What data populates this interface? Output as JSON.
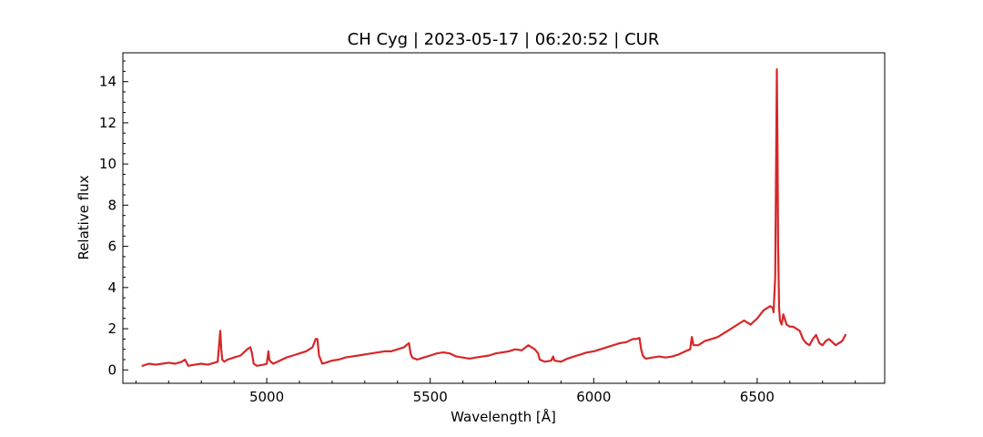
{
  "chart_data": {
    "type": "line",
    "title": "CH Cyg | 2023-05-17 | 06:20:52 | CUR",
    "xlabel": "Wavelength [Å]",
    "ylabel": "Relative flux",
    "xlim": [
      4560,
      6890
    ],
    "ylim": [
      -0.65,
      15.4
    ],
    "xticks": [
      5000,
      5500,
      6000,
      6500
    ],
    "yticks": [
      0,
      2,
      4,
      6,
      8,
      10,
      12,
      14
    ],
    "grid": false,
    "series": [
      {
        "color": "#d62728",
        "x": [
          4620,
          4640,
          4660,
          4680,
          4700,
          4720,
          4740,
          4750,
          4760,
          4780,
          4800,
          4820,
          4840,
          4850,
          4858,
          4861,
          4864,
          4870,
          4880,
          4900,
          4920,
          4940,
          4950,
          4955,
          4960,
          4970,
          4990,
          5000,
          5005,
          5008,
          5012,
          5020,
          5040,
          5060,
          5080,
          5100,
          5120,
          5140,
          5150,
          5155,
          5160,
          5170,
          5180,
          5200,
          5220,
          5240,
          5260,
          5280,
          5300,
          5320,
          5340,
          5360,
          5380,
          5400,
          5420,
          5435,
          5440,
          5445,
          5460,
          5480,
          5500,
          5520,
          5540,
          5560,
          5580,
          5600,
          5620,
          5640,
          5660,
          5680,
          5700,
          5720,
          5740,
          5760,
          5780,
          5800,
          5810,
          5820,
          5830,
          5835,
          5850,
          5870,
          5876,
          5880,
          5900,
          5920,
          5940,
          5960,
          5980,
          6000,
          6020,
          6040,
          6060,
          6080,
          6100,
          6120,
          6130,
          6140,
          6145,
          6150,
          6155,
          6160,
          6180,
          6200,
          6220,
          6240,
          6260,
          6280,
          6295,
          6300,
          6305,
          6320,
          6340,
          6360,
          6380,
          6400,
          6420,
          6440,
          6460,
          6470,
          6480,
          6500,
          6520,
          6530,
          6540,
          6548,
          6550,
          6555,
          6558,
          6560,
          6562,
          6564,
          6567,
          6570,
          6575,
          6580,
          6590,
          6600,
          6610,
          6620,
          6630,
          6640,
          6650,
          6660,
          6670,
          6680,
          6690,
          6700,
          6710,
          6720,
          6740,
          6760,
          6770
        ],
        "y": [
          0.2,
          0.3,
          0.25,
          0.3,
          0.35,
          0.3,
          0.4,
          0.5,
          0.2,
          0.25,
          0.3,
          0.25,
          0.35,
          0.4,
          1.9,
          1.0,
          0.5,
          0.4,
          0.5,
          0.6,
          0.7,
          1.0,
          1.1,
          0.8,
          0.3,
          0.2,
          0.25,
          0.3,
          0.9,
          0.5,
          0.4,
          0.3,
          0.45,
          0.6,
          0.7,
          0.8,
          0.9,
          1.1,
          1.5,
          1.5,
          0.7,
          0.3,
          0.35,
          0.45,
          0.5,
          0.6,
          0.65,
          0.7,
          0.75,
          0.8,
          0.85,
          0.9,
          0.9,
          1.0,
          1.1,
          1.3,
          0.8,
          0.6,
          0.5,
          0.6,
          0.7,
          0.8,
          0.85,
          0.8,
          0.65,
          0.6,
          0.55,
          0.6,
          0.65,
          0.7,
          0.8,
          0.85,
          0.9,
          1.0,
          0.95,
          1.2,
          1.1,
          1.0,
          0.8,
          0.5,
          0.4,
          0.45,
          0.65,
          0.45,
          0.4,
          0.55,
          0.65,
          0.75,
          0.85,
          0.9,
          1.0,
          1.1,
          1.2,
          1.3,
          1.35,
          1.5,
          1.5,
          1.55,
          1.0,
          0.7,
          0.6,
          0.55,
          0.6,
          0.65,
          0.6,
          0.65,
          0.75,
          0.9,
          1.0,
          1.6,
          1.2,
          1.2,
          1.4,
          1.5,
          1.6,
          1.8,
          2.0,
          2.2,
          2.4,
          2.3,
          2.2,
          2.5,
          2.9,
          3.0,
          3.1,
          3.0,
          2.8,
          4.5,
          10.0,
          14.6,
          11.0,
          6.0,
          3.0,
          2.4,
          2.2,
          2.7,
          2.2,
          2.1,
          2.1,
          2.0,
          1.9,
          1.5,
          1.3,
          1.2,
          1.5,
          1.7,
          1.3,
          1.2,
          1.4,
          1.5,
          1.2,
          1.4,
          1.7
        ]
      }
    ]
  }
}
